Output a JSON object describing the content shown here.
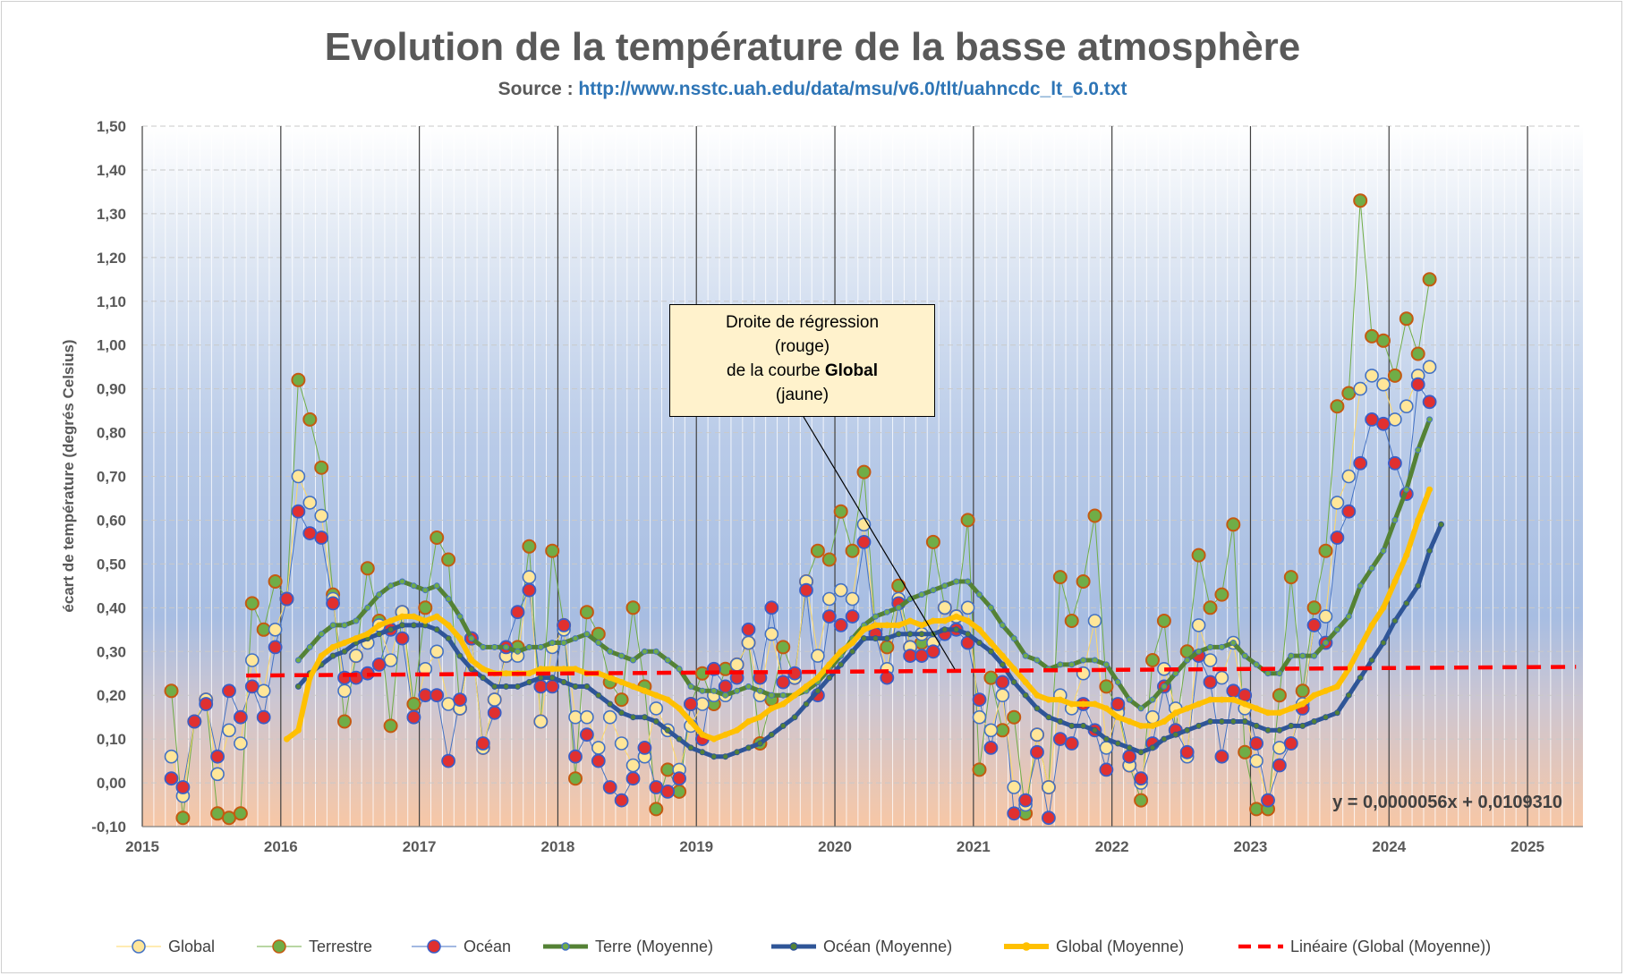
{
  "title": "Evolution de la température de la basse atmosphère",
  "subtitle": {
    "source_label": "Source : ",
    "url": "http://www.nsstc.uah.edu/data/msu/v6.0/tlt/uahncdc_lt_6.0.txt"
  },
  "callout": {
    "line1": "Droite de régression",
    "line2": "(rouge)",
    "line3_prefix": "de la courbe ",
    "line3_bold": "Global",
    "line4": "(jaune)"
  },
  "equation": "y = 0,0000056x + 0,0109310",
  "colors": {
    "global": "#ffd966",
    "global_mean": "#ffc000",
    "terre": "#548235",
    "terre_marker": "#70ad47",
    "ocean": "#c00000",
    "ocean_mean": "#2f5597",
    "ocean_line": "#4472c4",
    "trend": "#ff0000",
    "marker_edge": "#4472c4"
  },
  "chart_data": {
    "type": "line",
    "title": "Evolution de la température de la basse atmosphère",
    "ylabel": "écart de température (degrés Celsius)",
    "xlabel": "",
    "xlim": [
      2015,
      2025.4
    ],
    "ylim": [
      -0.1,
      1.5
    ],
    "x_ticks": [
      "2015",
      "2016",
      "2017",
      "2018",
      "2019",
      "2020",
      "2021",
      "2022",
      "2023",
      "2024",
      "2025"
    ],
    "y_ticks": [
      "-0,10",
      "0,00",
      "0,10",
      "0,20",
      "0,30",
      "0,40",
      "0,50",
      "0,60",
      "0,70",
      "0,80",
      "0,90",
      "1,00",
      "1,10",
      "1,20",
      "1,30",
      "1,40",
      "1,50"
    ],
    "x_start": 2015.21,
    "x_step": 0.08333,
    "legend_position": "bottom",
    "series": [
      {
        "name": "Global",
        "values": [
          0.06,
          -0.03,
          0.14,
          0.19,
          0.02,
          0.12,
          0.09,
          0.28,
          0.21,
          0.35,
          0.42,
          0.7,
          0.64,
          0.61,
          0.42,
          0.21,
          0.29,
          0.32,
          0.36,
          0.28,
          0.39,
          0.15,
          0.26,
          0.3,
          0.18,
          0.17,
          0.33,
          0.08,
          0.19,
          0.29,
          0.29,
          0.47,
          0.14,
          0.31,
          0.35,
          0.15,
          0.15,
          0.08,
          0.15,
          0.09,
          0.04,
          0.06,
          0.17,
          0.12,
          0.03,
          0.13,
          0.18,
          0.2,
          0.2,
          0.27,
          0.32,
          0.2,
          0.34,
          0.23,
          0.24,
          0.46,
          0.29,
          0.42,
          0.44,
          0.42,
          0.59,
          0.35,
          0.26,
          0.42,
          0.31,
          0.34,
          0.32,
          0.4,
          0.38,
          0.4,
          0.15,
          0.12,
          0.2,
          -0.01,
          -0.05,
          0.11,
          -0.01,
          0.2,
          0.17,
          0.25,
          0.37,
          0.08,
          0.16,
          0.04,
          0.0,
          0.15,
          0.26,
          0.17,
          0.06,
          0.36,
          0.28,
          0.24,
          0.32,
          0.17,
          0.05,
          -0.04,
          0.08,
          0.09,
          0.18,
          0.36,
          0.38,
          0.64,
          0.7,
          0.9,
          0.93,
          0.91,
          0.83,
          0.86,
          0.93,
          0.95
        ]
      },
      {
        "name": "Terrestre",
        "values": [
          0.21,
          -0.08,
          0.14,
          0.19,
          -0.07,
          -0.08,
          -0.07,
          0.41,
          0.35,
          0.46,
          0.42,
          0.92,
          0.83,
          0.72,
          0.43,
          0.14,
          0.29,
          0.49,
          0.37,
          0.13,
          0.39,
          0.18,
          0.4,
          0.56,
          0.51,
          0.17,
          0.33,
          0.08,
          0.19,
          0.29,
          0.31,
          0.54,
          0.14,
          0.53,
          0.36,
          0.01,
          0.39,
          0.34,
          0.23,
          0.19,
          0.4,
          0.22,
          -0.06,
          0.03,
          -0.02,
          0.18,
          0.25,
          0.18,
          0.26,
          0.27,
          0.32,
          0.09,
          0.19,
          0.31,
          0.24,
          0.46,
          0.53,
          0.51,
          0.62,
          0.53,
          0.71,
          0.35,
          0.31,
          0.45,
          0.31,
          0.32,
          0.55,
          0.4,
          0.38,
          0.6,
          0.03,
          0.24,
          0.12,
          0.15,
          -0.07,
          0.11,
          -0.01,
          0.47,
          0.37,
          0.46,
          0.61,
          0.22,
          0.17,
          0.04,
          -0.04,
          0.28,
          0.37,
          0.12,
          0.3,
          0.52,
          0.4,
          0.43,
          0.59,
          0.07,
          -0.06,
          -0.06,
          0.2,
          0.47,
          0.21,
          0.4,
          0.53,
          0.86,
          0.89,
          1.33,
          1.02,
          1.01,
          0.93,
          1.06,
          0.98,
          1.15
        ]
      },
      {
        "name": "Océan",
        "values": [
          0.01,
          -0.01,
          0.14,
          0.18,
          0.06,
          0.21,
          0.15,
          0.22,
          0.15,
          0.31,
          0.42,
          0.62,
          0.57,
          0.56,
          0.41,
          0.24,
          0.24,
          0.25,
          0.27,
          0.35,
          0.33,
          0.15,
          0.2,
          0.2,
          0.05,
          0.19,
          0.33,
          0.09,
          0.16,
          0.31,
          0.39,
          0.44,
          0.22,
          0.22,
          0.36,
          0.06,
          0.11,
          0.05,
          -0.01,
          -0.04,
          0.01,
          0.08,
          -0.01,
          -0.02,
          0.01,
          0.18,
          0.1,
          0.26,
          0.22,
          0.24,
          0.35,
          0.24,
          0.4,
          0.23,
          0.25,
          0.44,
          0.2,
          0.38,
          0.36,
          0.38,
          0.55,
          0.34,
          0.24,
          0.41,
          0.29,
          0.29,
          0.3,
          0.34,
          0.35,
          0.32,
          0.19,
          0.08,
          0.23,
          -0.07,
          -0.04,
          0.07,
          -0.08,
          0.1,
          0.09,
          0.18,
          0.12,
          0.03,
          0.18,
          0.06,
          0.01,
          0.09,
          0.22,
          0.12,
          0.07,
          0.29,
          0.23,
          0.06,
          0.21,
          0.2,
          0.09,
          -0.04,
          0.04,
          0.09,
          0.17,
          0.36,
          0.32,
          0.56,
          0.62,
          0.73,
          0.83,
          0.82,
          0.73,
          0.66,
          0.91,
          0.87
        ]
      },
      {
        "name": "Terre (Moyenne)",
        "values": [
          null,
          null,
          null,
          null,
          null,
          null,
          null,
          null,
          null,
          null,
          null,
          0.28,
          0.31,
          0.34,
          0.36,
          0.36,
          0.37,
          0.4,
          0.43,
          0.45,
          0.46,
          0.45,
          0.44,
          0.45,
          0.42,
          0.38,
          0.33,
          0.31,
          0.31,
          0.31,
          0.3,
          0.31,
          0.31,
          0.32,
          0.32,
          0.33,
          0.34,
          0.32,
          0.3,
          0.29,
          0.28,
          0.3,
          0.3,
          0.28,
          0.26,
          0.22,
          0.21,
          0.21,
          0.2,
          0.21,
          0.22,
          0.21,
          0.2,
          0.2,
          0.2,
          0.21,
          0.23,
          0.26,
          0.29,
          0.33,
          0.36,
          0.38,
          0.39,
          0.4,
          0.42,
          0.43,
          0.44,
          0.45,
          0.46,
          0.46,
          0.43,
          0.4,
          0.36,
          0.33,
          0.29,
          0.28,
          0.26,
          0.27,
          0.27,
          0.28,
          0.28,
          0.27,
          0.23,
          0.19,
          0.17,
          0.19,
          0.22,
          0.25,
          0.28,
          0.3,
          0.31,
          0.31,
          0.32,
          0.29,
          0.27,
          0.25,
          0.25,
          0.29,
          0.29,
          0.29,
          0.32,
          0.35,
          0.38,
          0.45,
          0.49,
          0.53,
          0.6,
          0.67,
          0.76,
          0.83
        ]
      },
      {
        "name": "Océan (Moyenne)",
        "values": [
          null,
          null,
          null,
          null,
          null,
          null,
          null,
          null,
          null,
          null,
          null,
          0.22,
          0.25,
          0.27,
          0.29,
          0.3,
          0.32,
          0.33,
          0.34,
          0.35,
          0.36,
          0.36,
          0.36,
          0.35,
          0.33,
          0.29,
          0.26,
          0.24,
          0.22,
          0.22,
          0.22,
          0.23,
          0.24,
          0.24,
          0.23,
          0.22,
          0.22,
          0.2,
          0.18,
          0.16,
          0.15,
          0.15,
          0.14,
          0.12,
          0.1,
          0.08,
          0.07,
          0.06,
          0.06,
          0.07,
          0.08,
          0.09,
          0.11,
          0.13,
          0.15,
          0.18,
          0.21,
          0.24,
          0.27,
          0.3,
          0.33,
          0.33,
          0.33,
          0.34,
          0.34,
          0.34,
          0.34,
          0.35,
          0.35,
          0.34,
          0.32,
          0.3,
          0.27,
          0.23,
          0.2,
          0.17,
          0.15,
          0.14,
          0.13,
          0.13,
          0.12,
          0.1,
          0.09,
          0.08,
          0.07,
          0.08,
          0.1,
          0.11,
          0.12,
          0.13,
          0.14,
          0.14,
          0.14,
          0.14,
          0.13,
          0.12,
          0.12,
          0.13,
          0.13,
          0.14,
          0.15,
          0.16,
          0.2,
          0.24,
          0.28,
          0.32,
          0.37,
          0.41,
          0.45,
          0.53,
          0.59
        ]
      },
      {
        "name": "Global (Moyenne)",
        "values": [
          null,
          null,
          null,
          null,
          null,
          null,
          null,
          null,
          null,
          null,
          0.1,
          0.12,
          0.24,
          0.29,
          0.31,
          0.32,
          0.33,
          0.34,
          0.36,
          0.37,
          0.38,
          0.38,
          0.37,
          0.38,
          0.36,
          0.33,
          0.28,
          0.26,
          0.25,
          0.25,
          0.25,
          0.25,
          0.26,
          0.26,
          0.26,
          0.26,
          0.25,
          0.25,
          0.24,
          0.23,
          0.22,
          0.21,
          0.2,
          0.19,
          0.17,
          0.14,
          0.11,
          0.1,
          0.11,
          0.12,
          0.14,
          0.15,
          0.17,
          0.18,
          0.2,
          0.22,
          0.24,
          0.27,
          0.3,
          0.32,
          0.35,
          0.36,
          0.36,
          0.36,
          0.37,
          0.36,
          0.37,
          0.37,
          0.38,
          0.37,
          0.35,
          0.32,
          0.29,
          0.26,
          0.23,
          0.2,
          0.19,
          0.19,
          0.18,
          0.18,
          0.18,
          0.17,
          0.15,
          0.14,
          0.13,
          0.13,
          0.14,
          0.16,
          0.17,
          0.18,
          0.19,
          0.19,
          0.19,
          0.18,
          0.17,
          0.16,
          0.16,
          0.17,
          0.18,
          0.2,
          0.21,
          0.22,
          0.26,
          0.31,
          0.36,
          0.4,
          0.46,
          0.52,
          0.6,
          0.67
        ]
      },
      {
        "name": "Linéaire (Global (Moyenne))",
        "x_range": [
          2015.75,
          2025.35
        ],
        "y_range": [
          0.245,
          0.265
        ]
      }
    ]
  },
  "legend": [
    {
      "label": "Global"
    },
    {
      "label": "Terrestre"
    },
    {
      "label": "Océan"
    },
    {
      "label": "Terre (Moyenne)"
    },
    {
      "label": "Océan (Moyenne)"
    },
    {
      "label": "Global (Moyenne)"
    },
    {
      "label": "Linéaire (Global (Moyenne))"
    }
  ]
}
